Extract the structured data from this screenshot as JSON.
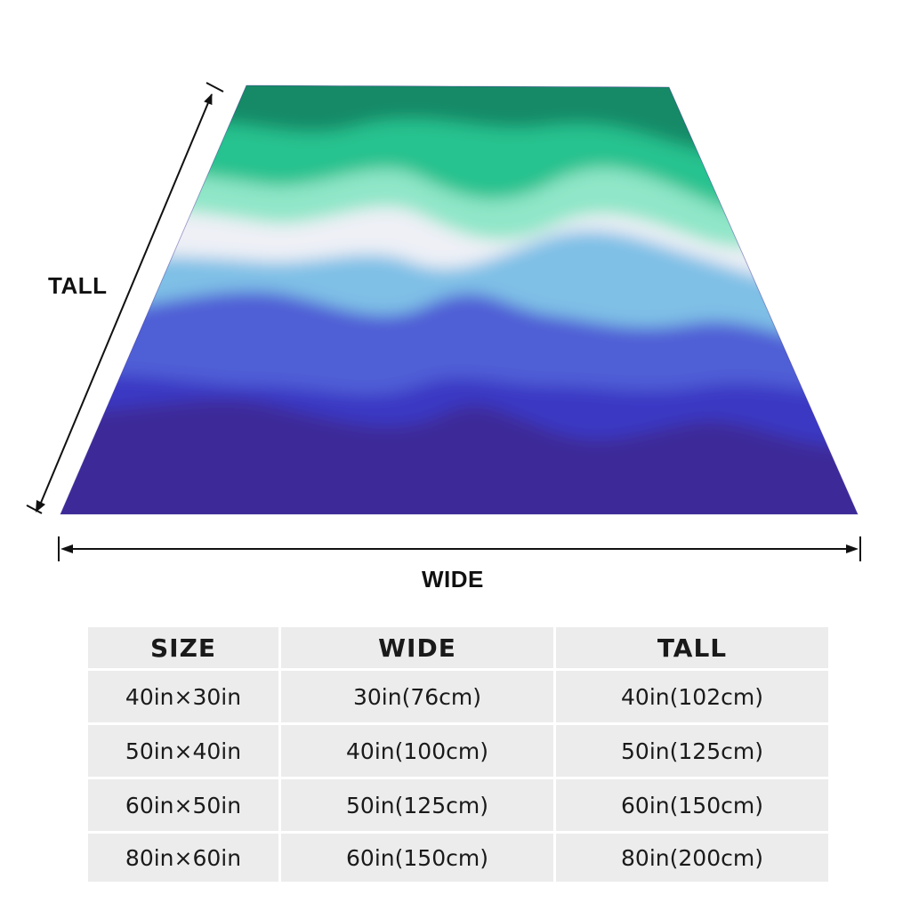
{
  "diagram": {
    "tall_label": "TALL",
    "wide_label": "WIDE"
  },
  "blanket": {
    "colors": [
      "#128a66",
      "#26c28f",
      "#8fe6c8",
      "#eef0f6",
      "#7fc0e6",
      "#4f5fd6",
      "#3a38c4",
      "#3c2a98"
    ]
  },
  "size_table": {
    "headers": [
      "SIZE",
      "WIDE",
      "TALL"
    ],
    "rows": [
      [
        "40in×30in",
        "30in(76cm)",
        "40in(102cm)"
      ],
      [
        "50in×40in",
        "40in(100cm)",
        "50in(125cm)"
      ],
      [
        "60in×50in",
        "50in(125cm)",
        "60in(150cm)"
      ],
      [
        "80in×60in",
        "60in(150cm)",
        "80in(200cm)"
      ]
    ]
  }
}
